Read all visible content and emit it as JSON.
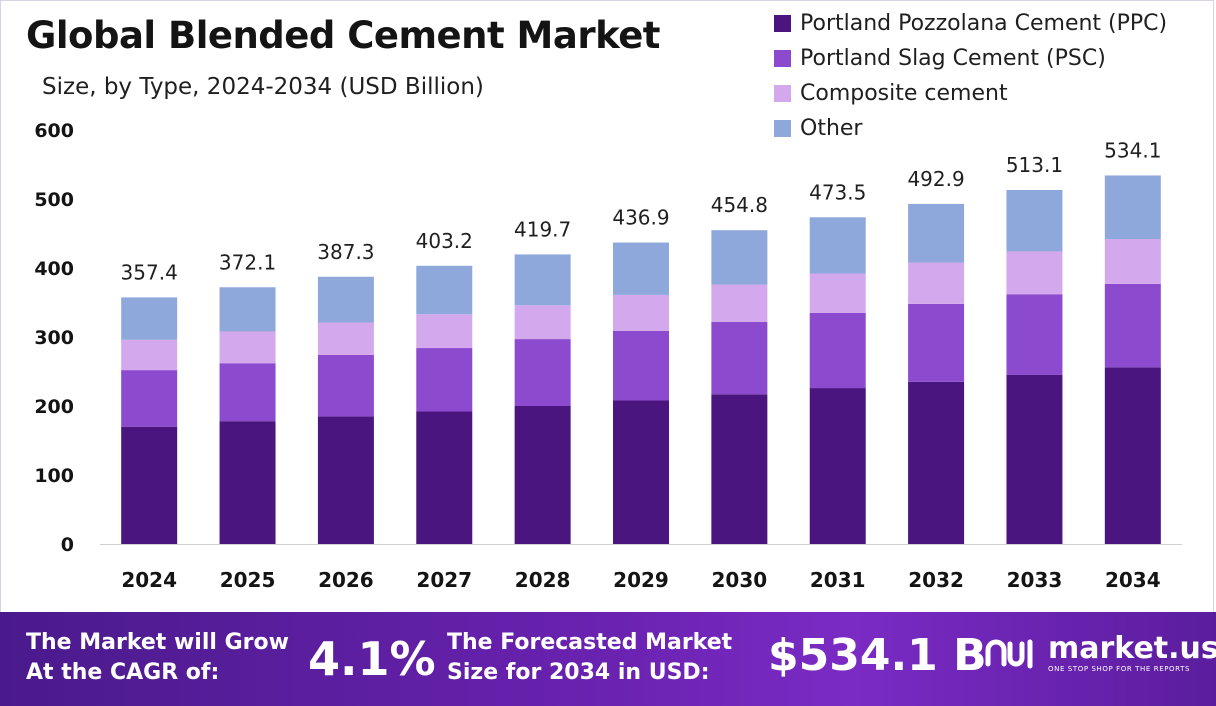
{
  "title": "Global Blended Cement Market",
  "subtitle": "Size, by Type, 2024-2034 (USD Billion)",
  "colors": {
    "ppc": "#4b1580",
    "psc": "#8c4bcf",
    "composite": "#d4a8ec",
    "other": "#8fa8dc",
    "banner": "#5b1d9e"
  },
  "chart_data": {
    "type": "bar",
    "stacked": true,
    "categories": [
      "2024",
      "2025",
      "2026",
      "2027",
      "2028",
      "2029",
      "2030",
      "2031",
      "2032",
      "2033",
      "2034"
    ],
    "series": [
      {
        "name": "Portland Pozzolana Cement (PPC)",
        "values": [
          170,
          178,
          185,
          192,
          200,
          208,
          217,
          226,
          235,
          245,
          256
        ]
      },
      {
        "name": "Portland Slag Cement (PSC)",
        "values": [
          82,
          84,
          89,
          92,
          97,
          101,
          105,
          109,
          113,
          117,
          121
        ]
      },
      {
        "name": "Composite cement",
        "values": [
          44,
          46,
          47,
          49,
          49,
          52,
          54,
          57,
          60,
          62,
          65
        ]
      },
      {
        "name": "Other",
        "values": [
          61.4,
          64.1,
          66.3,
          70.2,
          73.7,
          75.9,
          78.8,
          81.5,
          84.9,
          89.1,
          92.1
        ]
      }
    ],
    "totals": [
      "357.4",
      "372.1",
      "387.3",
      "403.2",
      "419.7",
      "436.9",
      "454.8",
      "473.5",
      "492.9",
      "513.1",
      "534.1"
    ],
    "yticks": [
      "0",
      "100",
      "200",
      "300",
      "400",
      "500",
      "600"
    ],
    "ylim": [
      0,
      600
    ],
    "grid": false,
    "legend_position": "top-right"
  },
  "banner": {
    "cagr_label_line1": "The Market will Grow",
    "cagr_label_line2": "At the CAGR of:",
    "cagr_value": "4.1%",
    "forecast_label_line1": "The Forecasted Market",
    "forecast_label_line2": "Size for 2034 in USD:",
    "forecast_value": "$534.1 B",
    "logo_name": "market.us",
    "logo_tagline": "ONE STOP SHOP FOR THE REPORTS"
  }
}
